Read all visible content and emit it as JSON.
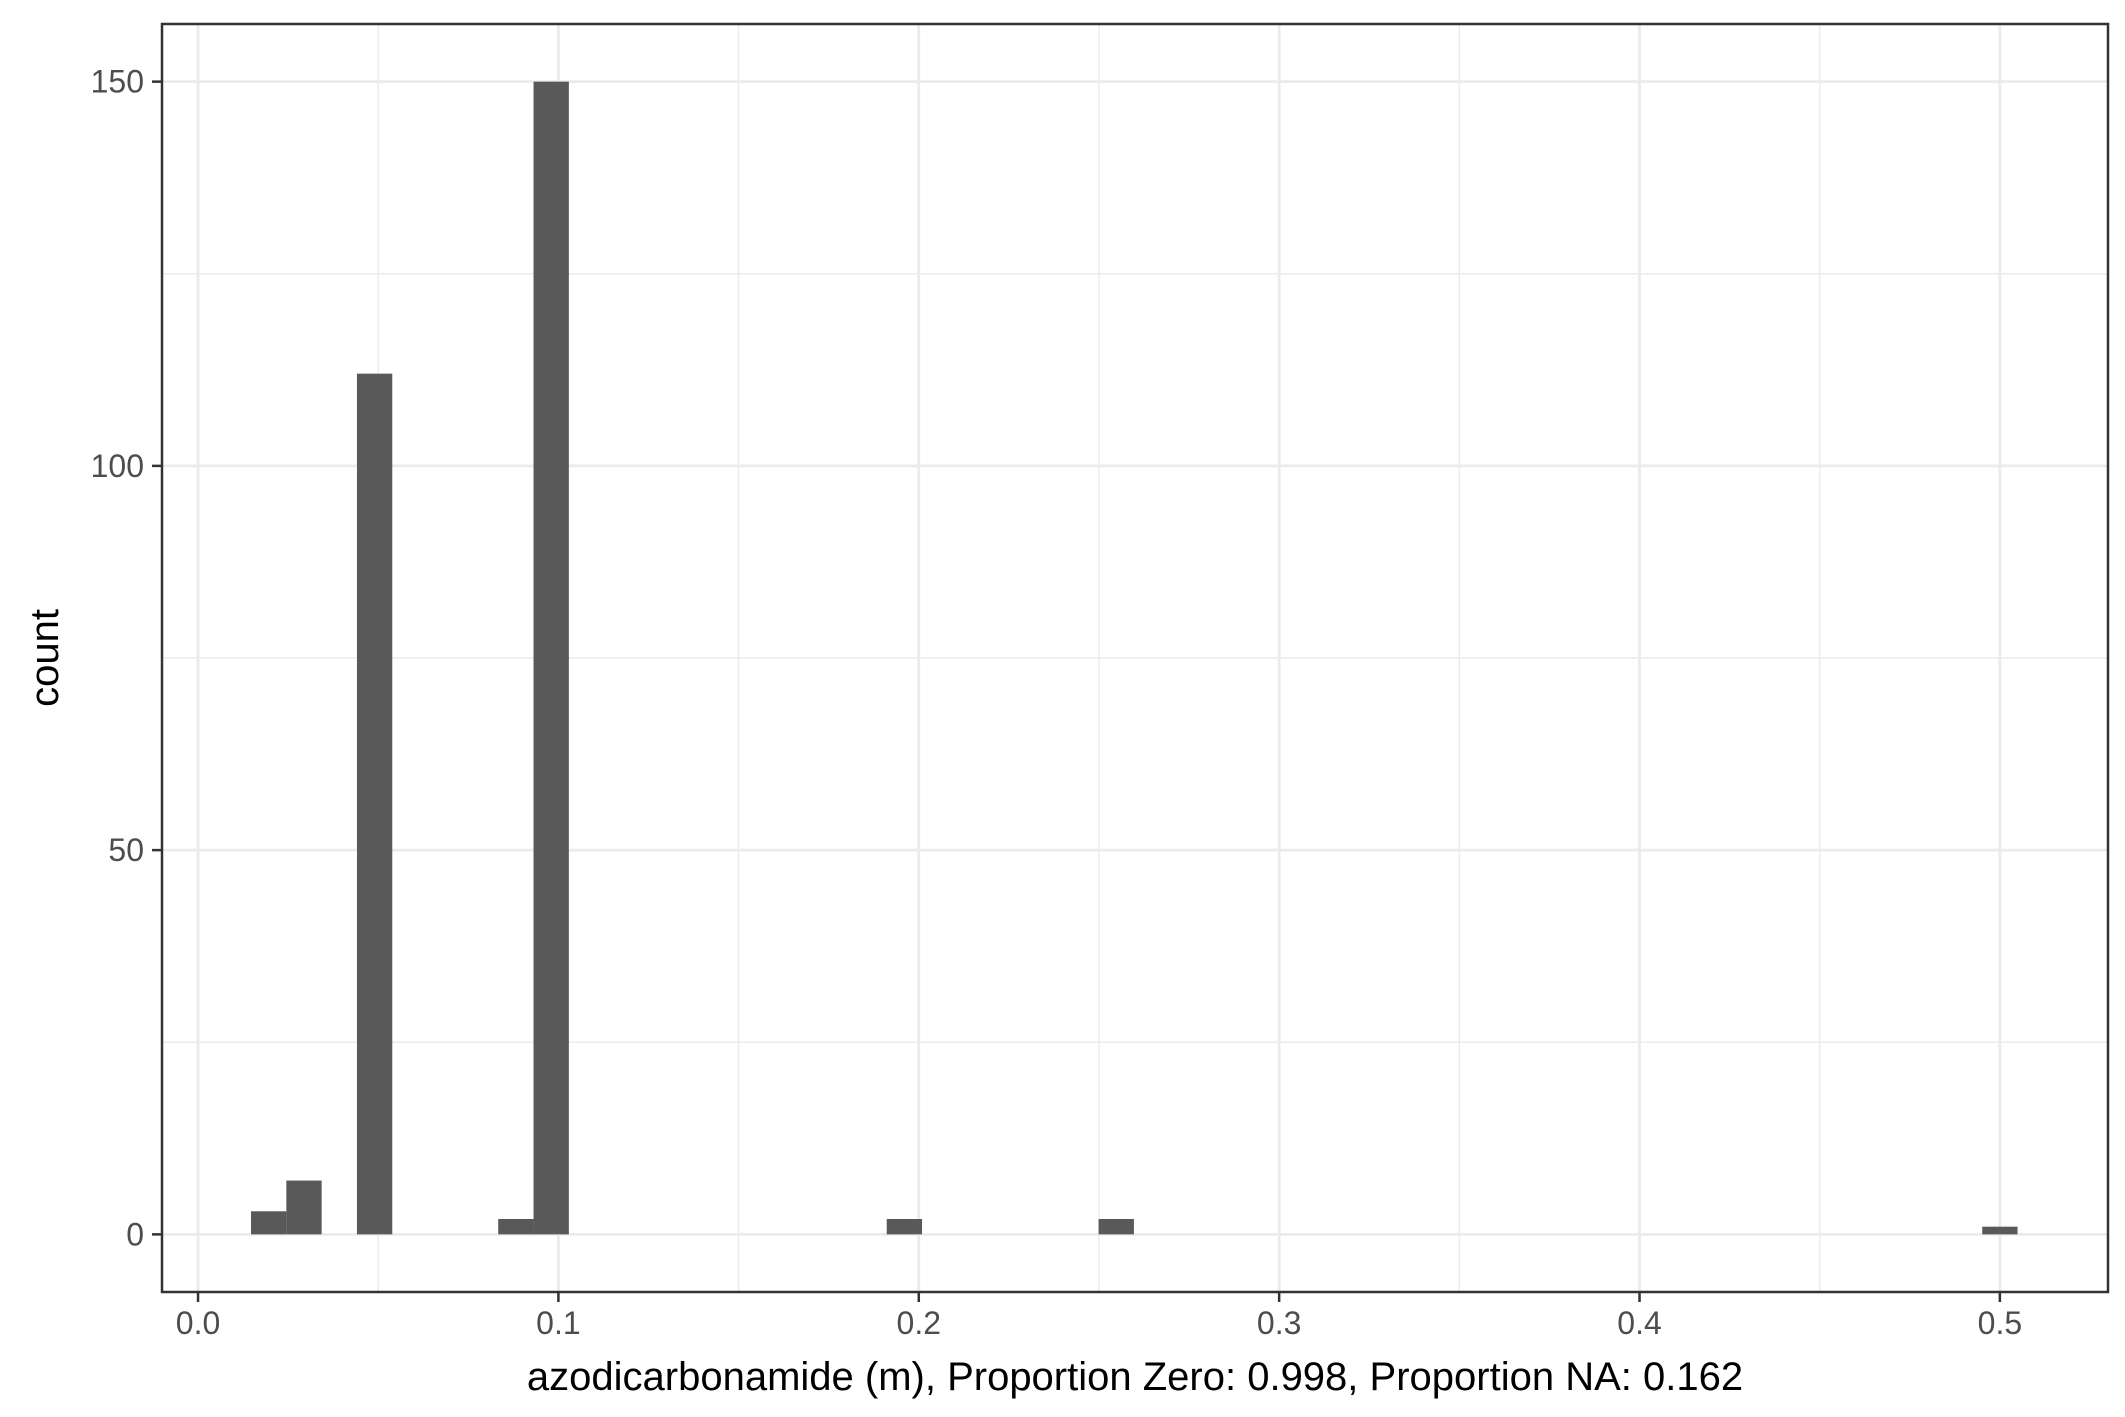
{
  "chart_data": {
    "type": "bar",
    "title": "",
    "xlabel": "azodicarbonamide (m), Proportion Zero: 0.998, Proportion NA: 0.162",
    "ylabel": "count",
    "xlim": [
      -0.01,
      0.53
    ],
    "ylim": [
      -7.5,
      157.5
    ],
    "x_ticks": [
      0.0,
      0.1,
      0.2,
      0.3,
      0.4,
      0.5
    ],
    "x_tick_labels": [
      "0.0",
      "0.1",
      "0.2",
      "0.3",
      "0.4",
      "0.5"
    ],
    "x_minor_ticks": [
      0.05,
      0.15,
      0.25,
      0.35,
      0.45
    ],
    "y_ticks": [
      0,
      50,
      100,
      150
    ],
    "y_tick_labels": [
      "0",
      "50",
      "100",
      "150"
    ],
    "y_minor_ticks": [
      25,
      75,
      125
    ],
    "grid": true,
    "bar_color": "#595959",
    "bins": [
      {
        "x0": 0.0147,
        "x1": 0.0245,
        "count": 3
      },
      {
        "x0": 0.0245,
        "x1": 0.0343,
        "count": 7
      },
      {
        "x0": 0.0441,
        "x1": 0.0539,
        "count": 112
      },
      {
        "x0": 0.0833,
        "x1": 0.0931,
        "count": 2
      },
      {
        "x0": 0.0931,
        "x1": 0.1029,
        "count": 150
      },
      {
        "x0": 0.1911,
        "x1": 0.2009,
        "count": 2
      },
      {
        "x0": 0.2499,
        "x1": 0.2597,
        "count": 2
      },
      {
        "x0": 0.4951,
        "x1": 0.5049,
        "count": 1
      }
    ]
  }
}
